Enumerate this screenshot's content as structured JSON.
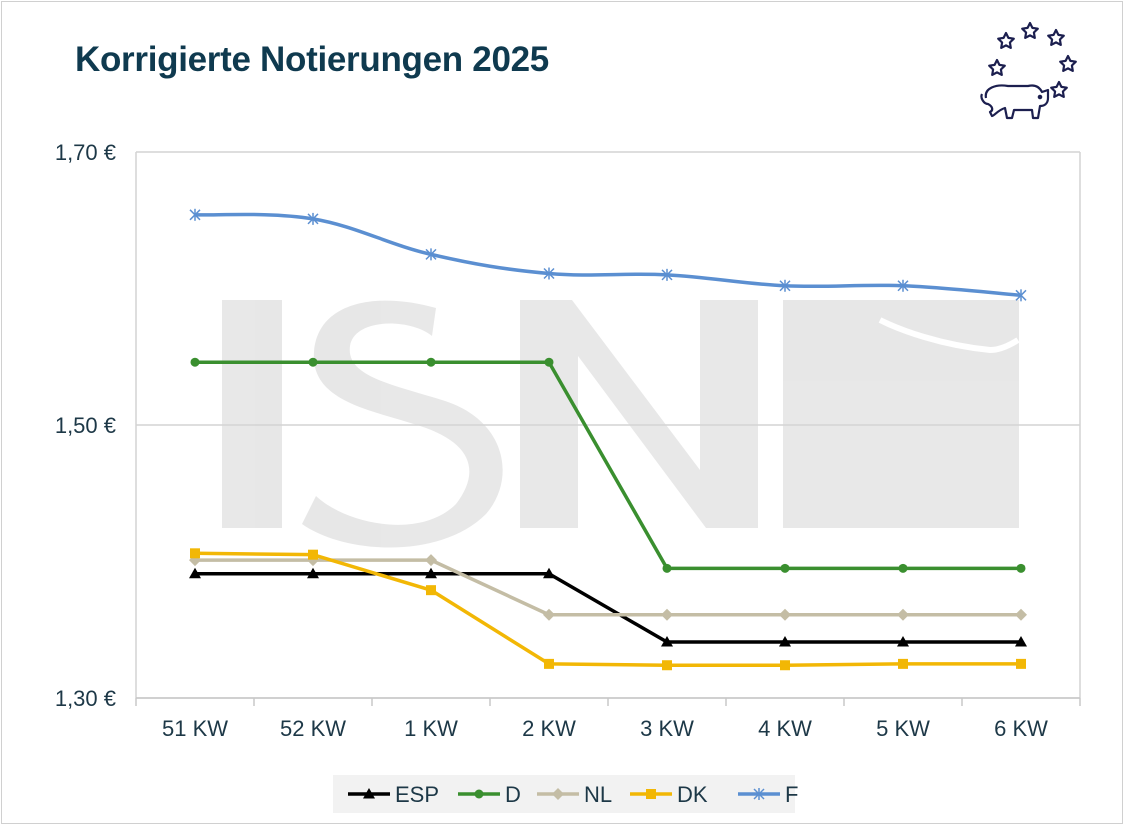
{
  "title": "Korrigierte Notierungen 2025",
  "chart_data": {
    "type": "line",
    "title": "Korrigierte Notierungen 2025",
    "categories": [
      "51 KW",
      "52 KW",
      "1 KW",
      "2 KW",
      "3 KW",
      "4 KW",
      "5 KW",
      "6 KW"
    ],
    "ylim": [
      1.3,
      1.7
    ],
    "yticks": [
      1.3,
      1.5,
      1.7
    ],
    "ytick_labels": [
      "1,30 €",
      "1,50 €",
      "1,70 €"
    ],
    "grid": true,
    "legend_position": "bottom",
    "series": [
      {
        "name": "ESP",
        "color": "#000000",
        "marker": "triangle",
        "values": [
          1.391,
          1.391,
          1.391,
          1.391,
          1.341,
          1.341,
          1.341,
          1.341
        ]
      },
      {
        "name": "D",
        "color": "#3a8f2f",
        "marker": "circle",
        "values": [
          1.546,
          1.546,
          1.546,
          1.546,
          1.395,
          1.395,
          1.395,
          1.395
        ]
      },
      {
        "name": "NL",
        "color": "#c4bda5",
        "marker": "diamond",
        "values": [
          1.401,
          1.401,
          1.401,
          1.361,
          1.361,
          1.361,
          1.361,
          1.361
        ]
      },
      {
        "name": "DK",
        "color": "#f2b705",
        "marker": "square",
        "values": [
          1.406,
          1.405,
          1.379,
          1.325,
          1.324,
          1.324,
          1.325,
          1.325
        ]
      },
      {
        "name": "F",
        "color": "#5b8fd1",
        "marker": "star",
        "values": [
          1.654,
          1.651,
          1.625,
          1.611,
          1.61,
          1.602,
          1.602,
          1.595
        ]
      }
    ]
  }
}
